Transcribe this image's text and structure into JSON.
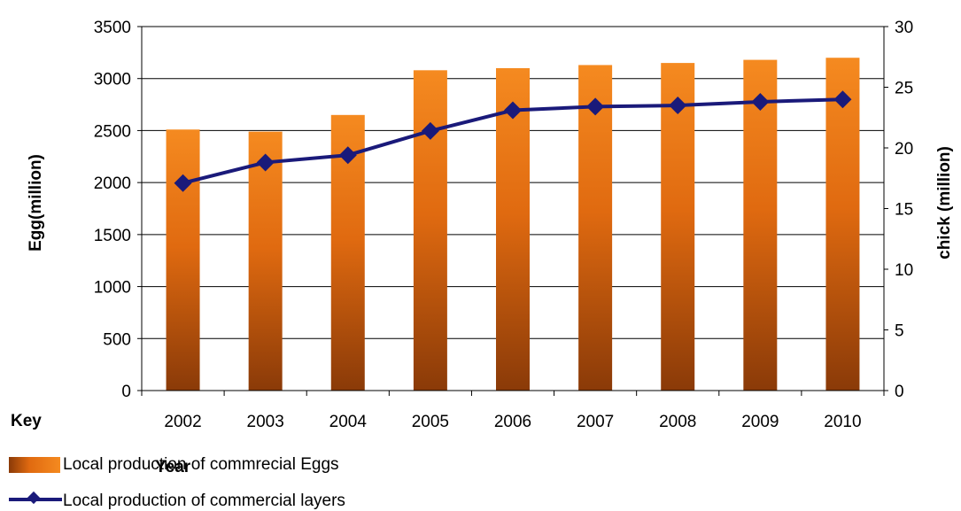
{
  "chart_data": {
    "type": "bar",
    "categories": [
      "2002",
      "2003",
      "2004",
      "2005",
      "2006",
      "2007",
      "2008",
      "2009",
      "2010"
    ],
    "series": [
      {
        "name": "Local production of commrecial Eggs",
        "type": "bar",
        "axis": "left",
        "values": [
          2510,
          2490,
          2650,
          3080,
          3100,
          3130,
          3150,
          3180,
          3200
        ]
      },
      {
        "name": "Local production of commercial layers",
        "type": "line",
        "axis": "right",
        "values": [
          17.1,
          18.8,
          19.4,
          21.4,
          23.1,
          23.4,
          23.5,
          23.8,
          24.0
        ]
      }
    ],
    "xlabel": "Year",
    "ylabel": "Egg(million)",
    "y2label": "chick (million)",
    "ylim": [
      0,
      3500
    ],
    "y2lim": [
      0,
      30
    ],
    "yticks": [
      "0",
      "500",
      "1000",
      "1500",
      "2000",
      "2500",
      "3000",
      "3500"
    ],
    "y2ticks": [
      "0",
      "5",
      "10",
      "15",
      "20",
      "25",
      "30"
    ],
    "grid": true,
    "legend_title": "Key",
    "legend_position": "bottom-left",
    "colors": {
      "bar": "#f07818",
      "bar_dark": "#8a3a08",
      "line": "#1a1a7a",
      "grid": "#000000"
    }
  }
}
